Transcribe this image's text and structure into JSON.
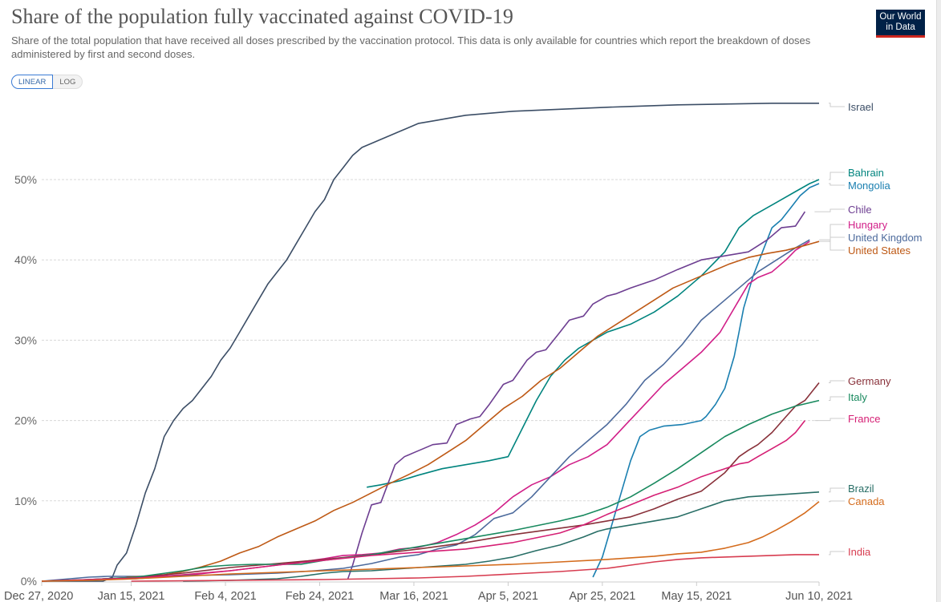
{
  "header": {
    "title": "Share of the population fully vaccinated against COVID-19",
    "subtitle": "Share of the total population that have received all doses prescribed by the vaccination protocol. This data is only available for countries which report the breakdown of doses administered by first and second doses.",
    "logo_line1": "Our World",
    "logo_line2": "in Data"
  },
  "controls": {
    "scale_options": [
      "LINEAR",
      "LOG"
    ],
    "selected_scale": "LINEAR"
  },
  "chart_data": {
    "type": "line",
    "title": "Share of the population fully vaccinated against COVID-19",
    "xlabel": "",
    "ylabel": "",
    "x_tick_labels": [
      "Dec 27, 2020",
      "Jan 15, 2021",
      "Feb 4, 2021",
      "Feb 24, 2021",
      "Mar 16, 2021",
      "Apr 5, 2021",
      "Apr 25, 2021",
      "May 15, 2021",
      "Jun 10, 2021"
    ],
    "x_tick_days": [
      0,
      19,
      39,
      59,
      79,
      99,
      119,
      139,
      165
    ],
    "x_range_days": [
      0,
      165
    ],
    "x_origin": "Dec 27, 2020",
    "y_tick_labels": [
      "0%",
      "10%",
      "20%",
      "30%",
      "40%",
      "50%"
    ],
    "y_ticks": [
      0,
      10,
      20,
      30,
      40,
      50
    ],
    "ylim": [
      0,
      60
    ],
    "grid": "horizontal-dashed",
    "legend": "right (line-end labels)",
    "series": [
      {
        "name": "Israel",
        "color": "#3c4e66",
        "x": [
          0,
          13,
          15,
          16,
          18,
          20,
          22,
          24,
          26,
          28,
          30,
          32,
          34,
          36,
          38,
          40,
          42,
          44,
          46,
          48,
          50,
          52,
          54,
          56,
          58,
          60,
          62,
          64,
          66,
          68,
          70,
          72,
          74,
          76,
          78,
          80,
          82,
          84,
          86,
          88,
          90,
          92,
          94,
          96,
          98,
          100,
          104,
          108,
          112,
          116,
          120,
          125,
          130,
          135,
          140,
          145,
          150,
          155,
          160,
          165
        ],
        "y": [
          0,
          0,
          0.5,
          2,
          3.5,
          7,
          11,
          14,
          18,
          20,
          21.5,
          22.5,
          24,
          25.5,
          27.5,
          29,
          31,
          33,
          35,
          37,
          38.5,
          40,
          42,
          44,
          46,
          47.5,
          50,
          51.5,
          53,
          54,
          54.5,
          55,
          55.5,
          56,
          56.5,
          57,
          57.2,
          57.4,
          57.6,
          57.8,
          58,
          58.1,
          58.2,
          58.3,
          58.4,
          58.5,
          58.6,
          58.7,
          58.8,
          58.9,
          59,
          59.1,
          59.2,
          59.3,
          59.35,
          59.4,
          59.45,
          59.5,
          59.5,
          59.5
        ]
      },
      {
        "name": "Bahrain",
        "color": "#00847e",
        "x": [
          69,
          72,
          76,
          80,
          85,
          90,
          95,
          99,
          102,
          105,
          108,
          111,
          114,
          117,
          120,
          125,
          130,
          135,
          140,
          145,
          148,
          151,
          154,
          157,
          160,
          163,
          165
        ],
        "y": [
          11.7,
          12,
          12.5,
          13.2,
          14,
          14.5,
          15,
          15.5,
          19,
          22.5,
          25.5,
          27.5,
          29,
          30,
          31,
          32,
          33.5,
          35.5,
          38,
          41,
          44,
          45.5,
          46.5,
          47.5,
          48.5,
          49.5,
          50
        ]
      },
      {
        "name": "Mongolia",
        "color": "#1a7fb0",
        "x": [
          117,
          119,
          121,
          123,
          124,
          125,
          127,
          129,
          132,
          136,
          140,
          141,
          143,
          145,
          147,
          148,
          149,
          150,
          151,
          153,
          155,
          157,
          159,
          161,
          163,
          165
        ],
        "y": [
          0.5,
          3,
          7,
          11,
          13,
          15,
          18,
          18.8,
          19.3,
          19.5,
          20,
          20.5,
          22,
          24,
          28,
          31,
          34,
          36,
          38,
          41,
          44,
          45,
          46.5,
          48,
          49,
          49.5
        ]
      },
      {
        "name": "Chile",
        "color": "#6d3e91",
        "x": [
          65,
          66,
          68,
          70,
          72,
          75,
          77,
          79,
          81,
          83,
          86,
          88,
          91,
          93,
          95,
          98,
          100,
          103,
          105,
          107,
          110,
          112,
          115,
          117,
          120,
          122,
          125,
          130,
          135,
          140,
          145,
          150,
          154,
          157,
          160,
          162
        ],
        "y": [
          0.3,
          2,
          6,
          9.5,
          9.8,
          14.5,
          15.5,
          16,
          16.5,
          17,
          17.2,
          19.5,
          20.2,
          20.5,
          22,
          24.5,
          25,
          27.5,
          28.5,
          28.8,
          31,
          32.5,
          33,
          34.5,
          35.5,
          35.8,
          36.5,
          37.5,
          38.8,
          40,
          40.5,
          41,
          42.5,
          44,
          44.2,
          46
        ]
      },
      {
        "name": "Hungary",
        "color": "#d51f74",
        "x": [
          0,
          20,
          30,
          40,
          50,
          60,
          64,
          68,
          72,
          76,
          80,
          84,
          88,
          92,
          96,
          100,
          104,
          108,
          112,
          116,
          120,
          124,
          128,
          132,
          136,
          140,
          144,
          148,
          150,
          152,
          155,
          158,
          160,
          163
        ],
        "y": [
          0,
          0.3,
          0.7,
          1.3,
          2,
          2.8,
          3.2,
          3.3,
          3.5,
          4,
          4.2,
          4.8,
          5.8,
          7,
          8.5,
          10.5,
          12,
          13,
          14.5,
          15.5,
          17,
          19.5,
          22,
          24.5,
          26.5,
          28.5,
          31,
          35,
          37,
          37.8,
          38.5,
          40,
          41.2,
          42.3
        ]
      },
      {
        "name": "United Kingdom",
        "color": "#4c6a9c",
        "x": [
          0,
          10,
          14,
          20,
          30,
          40,
          50,
          58,
          64,
          70,
          76,
          80,
          84,
          88,
          92,
          96,
          100,
          104,
          108,
          112,
          116,
          120,
          124,
          128,
          132,
          136,
          140,
          144,
          148,
          152,
          156,
          160,
          163
        ],
        "y": [
          0,
          0.5,
          0.6,
          0.6,
          0.7,
          0.8,
          1,
          1.3,
          1.6,
          2.2,
          3,
          3.3,
          4,
          4.5,
          5.8,
          7.8,
          8.5,
          10.5,
          13,
          15.5,
          17.5,
          19.5,
          22,
          25,
          27,
          29.5,
          32.5,
          34.5,
          36.5,
          38.5,
          40,
          41.5,
          42.5
        ]
      },
      {
        "name": "United States",
        "color": "#be5915",
        "x": [
          18,
          22,
          26,
          30,
          34,
          38,
          42,
          46,
          50,
          54,
          58,
          62,
          66,
          70,
          74,
          78,
          82,
          86,
          90,
          94,
          98,
          102,
          106,
          110,
          114,
          118,
          122,
          126,
          130,
          134,
          138,
          142,
          146,
          150,
          154,
          158,
          162,
          165
        ],
        "y": [
          0.5,
          0.6,
          0.8,
          1.2,
          1.8,
          2.5,
          3.5,
          4.3,
          5.5,
          6.5,
          7.5,
          8.8,
          9.8,
          11,
          12.2,
          13.3,
          14.5,
          16,
          17.5,
          19.5,
          21.5,
          23,
          25,
          26.5,
          28.5,
          30.5,
          32,
          33.5,
          35,
          36.5,
          37.5,
          38.5,
          39.5,
          40.3,
          40.8,
          41.2,
          41.8,
          42.3
        ]
      },
      {
        "name": "Germany",
        "color": "#883039",
        "x": [
          0,
          10,
          20,
          30,
          40,
          50,
          60,
          70,
          80,
          90,
          100,
          110,
          115,
          120,
          125,
          130,
          135,
          140,
          145,
          148,
          150,
          152,
          155,
          158,
          160,
          162,
          165
        ],
        "y": [
          0,
          0.2,
          0.5,
          1,
          1.7,
          2.2,
          2.7,
          3.3,
          4,
          4.8,
          5.8,
          6.6,
          7,
          7.5,
          8,
          9,
          10.2,
          11.2,
          13.5,
          15.5,
          16.3,
          17,
          18.5,
          20.5,
          21.8,
          22.5,
          24.7
        ]
      },
      {
        "name": "Italy",
        "color": "#18895e",
        "x": [
          0,
          10,
          20,
          30,
          35,
          40,
          45,
          50,
          55,
          60,
          70,
          80,
          90,
          100,
          110,
          115,
          120,
          125,
          130,
          135,
          140,
          145,
          150,
          155,
          160,
          165
        ],
        "y": [
          0,
          0.2,
          0.5,
          1.3,
          1.8,
          2,
          2.1,
          2.1,
          2.1,
          2.6,
          3.3,
          4.3,
          5.3,
          6.3,
          7.5,
          8.2,
          9.2,
          10.5,
          12.2,
          14,
          16,
          18,
          19.5,
          20.8,
          21.8,
          22.5
        ]
      },
      {
        "name": "France",
        "color": "#d73c50",
        "x": [
          0,
          10,
          20,
          30,
          40,
          50,
          60,
          70,
          80,
          90,
          100,
          110,
          115,
          120,
          125,
          130,
          135,
          140,
          145,
          148,
          150,
          152,
          155,
          158,
          160,
          162
        ],
        "y": [
          0,
          0.2,
          0.4,
          0.8,
          1.3,
          2,
          2.6,
          3.2,
          3.6,
          4,
          4.8,
          6,
          7,
          8.3,
          9.5,
          10.7,
          11.7,
          13,
          14,
          14.6,
          14.8,
          15.5,
          16.5,
          17.5,
          18.5,
          20
        ]
      },
      {
        "name": "Brazil",
        "color": "#286e66",
        "x": [
          30,
          40,
          50,
          55,
          60,
          64,
          70,
          80,
          90,
          95,
          100,
          105,
          110,
          115,
          118,
          120,
          125,
          130,
          135,
          140,
          145,
          150,
          155,
          160,
          165
        ],
        "y": [
          0,
          0.1,
          0.3,
          0.6,
          1,
          1.2,
          1.3,
          1.7,
          2.1,
          2.5,
          3,
          3.8,
          4.5,
          5.5,
          6.2,
          6.5,
          7,
          7.5,
          8,
          9,
          10,
          10.5,
          10.7,
          10.9,
          11.1
        ]
      },
      {
        "name": "Canada",
        "color": "#c15065",
        "alt_color": "#d2691e",
        "x": [
          0,
          10,
          20,
          30,
          40,
          50,
          60,
          70,
          80,
          90,
          100,
          110,
          120,
          125,
          130,
          135,
          140,
          145,
          150,
          153,
          156,
          159,
          162,
          165
        ],
        "y": [
          0,
          0.1,
          0.3,
          0.6,
          0.9,
          1.1,
          1.3,
          1.5,
          1.7,
          1.9,
          2.1,
          2.4,
          2.7,
          2.9,
          3.1,
          3.4,
          3.6,
          4.1,
          4.8,
          5.5,
          6.4,
          7.4,
          8.5,
          9.9
        ]
      },
      {
        "name": "India",
        "color": "#cf0a66",
        "x": [
          19,
          30,
          40,
          50,
          60,
          70,
          80,
          90,
          100,
          110,
          115,
          120,
          125,
          130,
          135,
          140,
          145,
          150,
          155,
          160,
          165
        ],
        "y": [
          0,
          0.05,
          0.1,
          0.15,
          0.2,
          0.3,
          0.4,
          0.6,
          0.9,
          1.2,
          1.4,
          1.6,
          2,
          2.4,
          2.7,
          2.9,
          3,
          3.1,
          3.2,
          3.3,
          3.3
        ]
      }
    ]
  }
}
